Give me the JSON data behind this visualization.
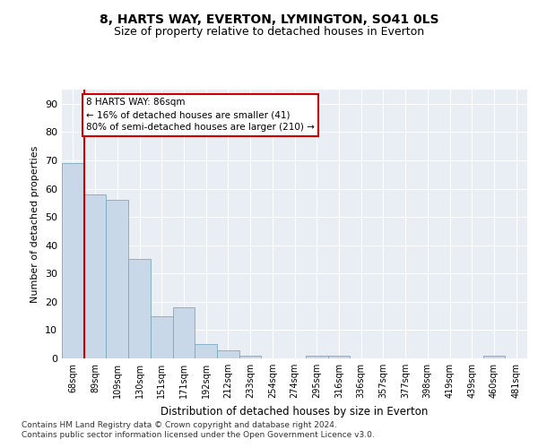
{
  "title1": "8, HARTS WAY, EVERTON, LYMINGTON, SO41 0LS",
  "title2": "Size of property relative to detached houses in Everton",
  "xlabel": "Distribution of detached houses by size in Everton",
  "ylabel": "Number of detached properties",
  "categories": [
    "68sqm",
    "89sqm",
    "109sqm",
    "130sqm",
    "151sqm",
    "171sqm",
    "192sqm",
    "212sqm",
    "233sqm",
    "254sqm",
    "274sqm",
    "295sqm",
    "316sqm",
    "336sqm",
    "357sqm",
    "377sqm",
    "398sqm",
    "419sqm",
    "439sqm",
    "460sqm",
    "481sqm"
  ],
  "values": [
    69,
    58,
    56,
    35,
    15,
    18,
    5,
    3,
    1,
    0,
    0,
    1,
    1,
    0,
    0,
    0,
    0,
    0,
    0,
    1,
    0
  ],
  "bar_color": "#c8d8e8",
  "bar_edge_color": "#7aaabb",
  "vline_color": "#cc0000",
  "annotation_text": "8 HARTS WAY: 86sqm\n← 16% of detached houses are smaller (41)\n80% of semi-detached houses are larger (210) →",
  "annotation_box_color": "#ffffff",
  "annotation_box_edge": "#cc0000",
  "ylim": [
    0,
    95
  ],
  "yticks": [
    0,
    10,
    20,
    30,
    40,
    50,
    60,
    70,
    80,
    90
  ],
  "background_color": "#e8eef4",
  "footer_line1": "Contains HM Land Registry data © Crown copyright and database right 2024.",
  "footer_line2": "Contains public sector information licensed under the Open Government Licence v3.0."
}
